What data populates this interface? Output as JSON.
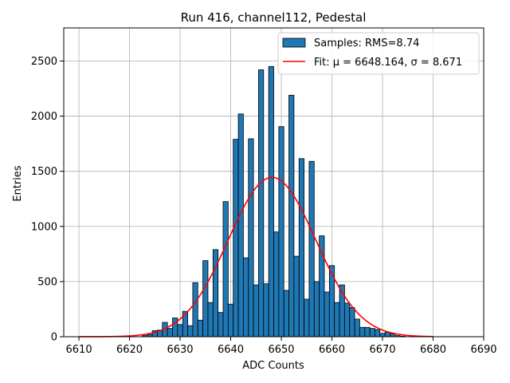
{
  "chart_data": {
    "type": "bar",
    "title": "Run 416, channel112, Pedestal",
    "xlabel": "ADC Counts",
    "ylabel": "Entries",
    "xlim": [
      6607,
      6690
    ],
    "ylim": [
      0,
      2800
    ],
    "xticks": [
      6610,
      6620,
      6630,
      6640,
      6650,
      6660,
      6670,
      6680,
      6690
    ],
    "yticks": [
      0,
      500,
      1000,
      1500,
      2000,
      2500
    ],
    "grid": true,
    "legend_position": "top-right",
    "bin_width": 1,
    "bins_x": [
      6623,
      6624,
      6625,
      6626,
      6627,
      6628,
      6629,
      6630,
      6631,
      6632,
      6633,
      6634,
      6635,
      6636,
      6637,
      6638,
      6639,
      6640,
      6641,
      6642,
      6643,
      6644,
      6645,
      6646,
      6647,
      6648,
      6649,
      6650,
      6651,
      6652,
      6653,
      6654,
      6655,
      6656,
      6657,
      6658,
      6659,
      6660,
      6661,
      6662,
      6663,
      6664,
      6665,
      6666,
      6667,
      6668,
      6669,
      6670,
      6671,
      6672,
      6673,
      6674
    ],
    "bins_y": [
      10,
      20,
      55,
      60,
      130,
      75,
      170,
      110,
      230,
      100,
      490,
      150,
      690,
      310,
      790,
      220,
      1225,
      295,
      1790,
      2020,
      715,
      1795,
      470,
      2420,
      480,
      2450,
      950,
      1905,
      420,
      2190,
      730,
      1615,
      340,
      1590,
      500,
      915,
      405,
      645,
      310,
      470,
      305,
      265,
      160,
      85,
      85,
      75,
      65,
      30,
      40,
      25,
      10,
      5
    ],
    "series": [
      {
        "name": "Samples: RMS=8.74",
        "kind": "histogram",
        "color": "#1f77b4"
      },
      {
        "name": "Fit: μ = 6648.164, σ = 8.671",
        "kind": "gaussian",
        "mu": 6648.164,
        "sigma": 8.671,
        "x_range": [
          6610,
          6680
        ],
        "color": "#ff0000"
      }
    ]
  }
}
